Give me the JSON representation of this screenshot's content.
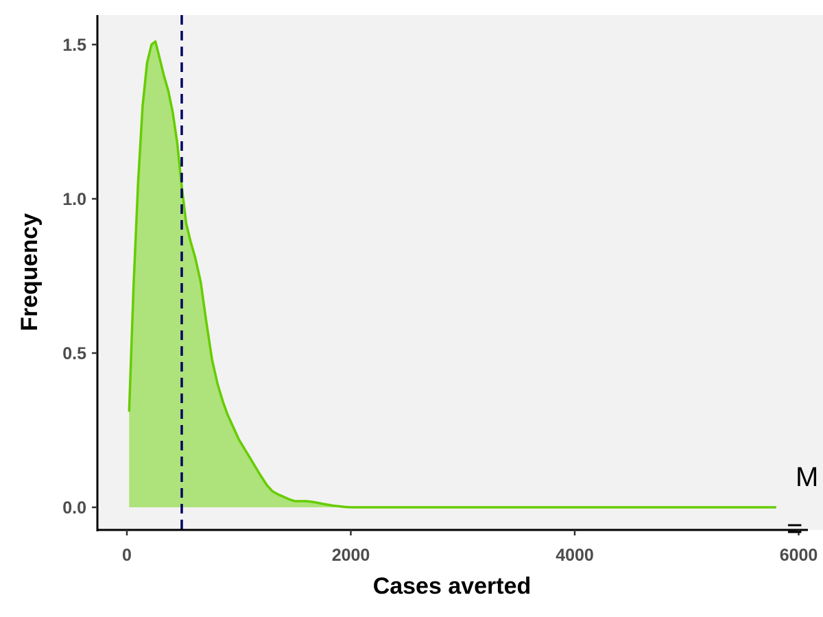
{
  "chart_data": {
    "type": "area",
    "xlabel": "Cases averted",
    "ylabel": "Frequency",
    "xlim": [
      -250,
      6000
    ],
    "ylim": [
      -0.07,
      1.6
    ],
    "x_ticks": [
      0,
      2000,
      4000,
      6000
    ],
    "x_tick_labels": [
      "0",
      "2000",
      "4000",
      "6000"
    ],
    "y_ticks": [
      0.0,
      0.5,
      1.0,
      1.5
    ],
    "y_tick_labels": [
      "0.0",
      "0.5",
      "1.0",
      "1.5"
    ],
    "grid": false,
    "background_color": "#f2f2f2",
    "series": [
      {
        "x": [
          20,
          60,
          100,
          140,
          180,
          220,
          255,
          290,
          330,
          370,
          410,
          450,
          490,
          530,
          570,
          610,
          660,
          710,
          760,
          810,
          860,
          900,
          950,
          1000,
          1050,
          1100,
          1150,
          1200,
          1250,
          1300,
          1350,
          1400,
          1450,
          1500,
          1550,
          1600,
          1650,
          1700,
          1750,
          1800,
          1850,
          1900,
          1950,
          2000,
          2050,
          2100,
          2150,
          2200,
          2500,
          3000,
          3500,
          4000,
          4500,
          5000,
          5500,
          5800
        ],
        "values": [
          0.31,
          0.72,
          1.05,
          1.3,
          1.44,
          1.5,
          1.51,
          1.46,
          1.4,
          1.35,
          1.28,
          1.18,
          1.04,
          0.92,
          0.86,
          0.81,
          0.73,
          0.6,
          0.48,
          0.4,
          0.34,
          0.3,
          0.26,
          0.22,
          0.19,
          0.16,
          0.13,
          0.1,
          0.072,
          0.052,
          0.042,
          0.034,
          0.026,
          0.02,
          0.02,
          0.02,
          0.018,
          0.015,
          0.011,
          0.008,
          0.005,
          0.003,
          0.001,
          0.0,
          0.0,
          0.0,
          0.0,
          0.0,
          0.0,
          0.0,
          0.0,
          0.0,
          0.0,
          0.0,
          0.0,
          0.0
        ],
        "line_color": "#66cc00",
        "fill_color": "#aee27a"
      }
    ],
    "reference_line": {
      "x": 490,
      "color": "#000066",
      "style": "dashed"
    },
    "annotations": [
      {
        "text": "M",
        "anchor": "right-edge"
      },
      {
        "text": "=",
        "anchor": "right-edge"
      }
    ]
  }
}
